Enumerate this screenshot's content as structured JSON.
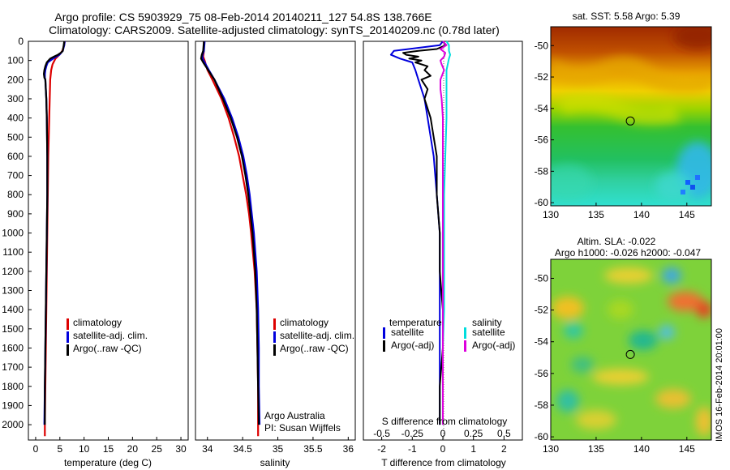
{
  "title": {
    "line1": "Argo profile: CS 5903929_75 08-Feb-2014 20140211_127 54.8S 138.766E",
    "line2": "Climatology: CARS2009. Satellite-adjusted climatology: synTS_20140209.nc (0.78d later)"
  },
  "depth_ticks": [
    "0",
    "100",
    "200",
    "300",
    "400",
    "500",
    "600",
    "700",
    "800",
    "900",
    "1000",
    "1100",
    "1200",
    "1300",
    "1400",
    "1500",
    "1600",
    "1700",
    "1800",
    "1900",
    "2000"
  ],
  "colors": {
    "climatology": "#dd0000",
    "satellite": "#0000dd",
    "argo": "#000000",
    "salinity_sat": "#00dddd",
    "salinity_argo": "#dd00dd"
  },
  "chart_data": [
    {
      "type": "line",
      "name": "temperature-profile",
      "xlabel": "temperature (deg C)",
      "x_ticks": [
        "0",
        "5",
        "10",
        "15",
        "20",
        "25",
        "30"
      ],
      "xlim": [
        -1.5,
        31.5
      ],
      "ylim": [
        2080,
        0
      ],
      "legend": [
        "climatology",
        "satellite-adj. clim.",
        "Argo(..raw -QC)"
      ],
      "series": [
        {
          "name": "climatology",
          "color_key": "climatology",
          "depth": [
            0,
            20,
            50,
            70,
            90,
            120,
            150,
            200,
            300,
            400,
            600,
            800,
            1000,
            1200,
            1400,
            1600,
            1800,
            2000,
            2060
          ],
          "values": [
            6.0,
            5.9,
            5.5,
            4.9,
            4.1,
            3.5,
            3.2,
            3.0,
            2.9,
            2.8,
            2.6,
            2.5,
            2.4,
            2.3,
            2.2,
            2.1,
            2.0,
            1.9,
            1.9
          ]
        },
        {
          "name": "satellite-adj. clim.",
          "color_key": "satellite",
          "depth": [
            0,
            20,
            50,
            70,
            90,
            110,
            130,
            150,
            170,
            190,
            200,
            300,
            400,
            600,
            800,
            1000,
            1200,
            1400,
            1600,
            1800,
            2000
          ],
          "values": [
            6.0,
            5.9,
            5.6,
            4.9,
            3.6,
            2.5,
            2.2,
            2.0,
            1.9,
            1.9,
            2.0,
            2.2,
            2.3,
            2.4,
            2.4,
            2.3,
            2.2,
            2.1,
            2.0,
            1.9,
            1.8
          ]
        },
        {
          "name": "Argo(..raw -QC)",
          "color_key": "argo",
          "depth": [
            0,
            20,
            50,
            60,
            70,
            80,
            90,
            110,
            130,
            150,
            170,
            190,
            200,
            300,
            400,
            600,
            800,
            1000,
            1200,
            1400,
            1600,
            1800,
            2000
          ],
          "values": [
            5.9,
            5.8,
            5.6,
            5.2,
            4.6,
            3.8,
            3.0,
            2.3,
            2.0,
            1.8,
            1.7,
            1.8,
            2.0,
            2.2,
            2.3,
            2.4,
            2.4,
            2.3,
            2.2,
            2.1,
            2.0,
            1.9,
            1.9
          ]
        }
      ]
    },
    {
      "type": "line",
      "name": "salinity-profile",
      "xlabel": "salinity",
      "x_ticks": [
        "34",
        "34.5",
        "35",
        "35.5",
        "36"
      ],
      "xlim": [
        33.83,
        36.1
      ],
      "ylim": [
        2080,
        0
      ],
      "legend": [
        "climatology",
        "satellite-adj. clim.",
        "Argo(..raw -QC)"
      ],
      "annotation": [
        "Argo Australia",
        "PI: Susan Wijffels"
      ],
      "series": [
        {
          "name": "climatology",
          "color_key": "climatology",
          "depth": [
            0,
            50,
            80,
            100,
            150,
            200,
            300,
            400,
            500,
            600,
            700,
            800,
            900,
            1000,
            1200,
            1400,
            1600,
            1800,
            2000,
            2060
          ],
          "values": [
            33.95,
            33.95,
            33.94,
            33.96,
            34.0,
            34.07,
            34.2,
            34.3,
            34.38,
            34.45,
            34.5,
            34.55,
            34.59,
            34.62,
            34.67,
            34.7,
            34.71,
            34.72,
            34.72,
            34.72
          ]
        },
        {
          "name": "satellite-adj. clim.",
          "color_key": "satellite",
          "depth": [
            0,
            50,
            70,
            90,
            110,
            150,
            200,
            300,
            400,
            500,
            600,
            700,
            800,
            900,
            1000,
            1200,
            1400,
            1600,
            1800,
            2000
          ],
          "values": [
            33.96,
            33.95,
            33.93,
            33.93,
            33.96,
            34.02,
            34.1,
            34.24,
            34.35,
            34.44,
            34.51,
            34.56,
            34.6,
            34.63,
            34.66,
            34.7,
            34.72,
            34.73,
            34.73,
            34.74
          ]
        },
        {
          "name": "Argo(..raw -QC)",
          "color_key": "argo",
          "depth": [
            0,
            50,
            70,
            90,
            110,
            150,
            200,
            300,
            400,
            500,
            600,
            700,
            800,
            900,
            1000,
            1200,
            1400,
            1600,
            1800,
            2000
          ],
          "values": [
            33.95,
            33.94,
            33.92,
            33.91,
            33.94,
            34.01,
            34.1,
            34.22,
            34.33,
            34.42,
            34.49,
            34.54,
            34.58,
            34.61,
            34.64,
            34.68,
            34.7,
            34.71,
            34.72,
            34.73
          ]
        }
      ]
    },
    {
      "type": "line",
      "name": "difference-profile",
      "xlabel": "T difference from climatology",
      "x_ticks": [
        "-2",
        "-1",
        "0",
        "1",
        "2"
      ],
      "xlim": [
        -2.6,
        2.6
      ],
      "s_axis_label": "S difference from climatology",
      "s_ticks": [
        "-0.5",
        "-0.25",
        "0",
        "0.25",
        "0.5"
      ],
      "ylim": [
        2080,
        0
      ],
      "legend_left_title": "temperature",
      "legend_left": [
        "satellite",
        "Argo(-adj)"
      ],
      "legend_right_title": "salinity",
      "legend_right": [
        "satellite",
        "Argo(-adj)"
      ],
      "series": [
        {
          "name": "T satellite",
          "color_key": "satellite",
          "depth": [
            0,
            20,
            50,
            70,
            90,
            110,
            150,
            200,
            300,
            400,
            600,
            800,
            1000,
            1200,
            1400,
            1600,
            1800,
            2000
          ],
          "values": [
            0,
            -0.1,
            -1.6,
            -1.7,
            -1.4,
            -1.0,
            -0.9,
            -0.8,
            -0.6,
            -0.5,
            -0.3,
            -0.2,
            -0.1,
            -0.1,
            -0.1,
            -0.1,
            -0.1,
            -0.1
          ]
        },
        {
          "name": "T Argo(-adj)",
          "color_key": "argo",
          "depth": [
            0,
            20,
            40,
            50,
            60,
            70,
            80,
            90,
            100,
            110,
            130,
            150,
            180,
            200,
            250,
            300,
            400,
            500,
            600,
            800,
            1000,
            1200,
            1400,
            1600,
            1800,
            2000
          ],
          "values": [
            0,
            0.1,
            -0.2,
            -0.8,
            -1.3,
            -1.2,
            -0.8,
            -1.1,
            -0.7,
            -0.9,
            -0.5,
            -0.6,
            -0.4,
            -0.7,
            -0.5,
            -0.6,
            -0.4,
            -0.3,
            -0.2,
            -0.2,
            -0.1,
            -0.1,
            0.0,
            0.0,
            -0.1,
            -0.1
          ]
        },
        {
          "name": "S satellite",
          "color_key": "salinity_sat",
          "depth": [
            0,
            20,
            50,
            70,
            90,
            120,
            150,
            200,
            300,
            400,
            600,
            800,
            1000,
            1200,
            1400,
            1600,
            1800,
            2000
          ],
          "values": [
            0.03,
            0.05,
            0.05,
            0.06,
            0.05,
            0.04,
            0.03,
            0.03,
            0.03,
            0.03,
            0.02,
            0.01,
            0.01,
            0.01,
            0.01,
            0.0,
            0.0,
            0.0
          ]
        },
        {
          "name": "S Argo(-adj)",
          "color_key": "salinity_argo",
          "depth": [
            0,
            20,
            40,
            60,
            80,
            100,
            120,
            150,
            200,
            250,
            300,
            400,
            600,
            800,
            1000,
            1200,
            1500,
            1800,
            2000
          ],
          "values": [
            0.0,
            0.03,
            -0.02,
            0.02,
            0.01,
            -0.02,
            -0.01,
            0.01,
            -0.02,
            -0.02,
            -0.01,
            0.0,
            0.0,
            0.0,
            0.0,
            0.0,
            0.0,
            0.0,
            0.0
          ]
        }
      ]
    },
    {
      "type": "heatmap",
      "name": "sst-map",
      "title": "sat. SST: 5.58 Argo: 5.39",
      "x_ticks": [
        "130",
        "135",
        "140",
        "145"
      ],
      "y_ticks": [
        "-50",
        "-52",
        "-54",
        "-56",
        "-58",
        "-60"
      ],
      "xlim": [
        130,
        147.7
      ],
      "ylim": [
        -60.2,
        -48.8
      ],
      "marker": {
        "lon": 138.766,
        "lat": -54.8
      }
    },
    {
      "type": "heatmap",
      "name": "sla-map",
      "title": "Altim. SLA: -0.022",
      "subtitle": "Argo h1000: -0.026 h2000: -0.047",
      "x_ticks": [
        "130",
        "135",
        "140",
        "145"
      ],
      "y_ticks": [
        "-50",
        "-52",
        "-54",
        "-56",
        "-58",
        "-60"
      ],
      "xlim": [
        130,
        147.7
      ],
      "ylim": [
        -60.2,
        -48.8
      ],
      "marker": {
        "lon": 138.766,
        "lat": -54.8
      }
    }
  ],
  "timestamp": "IMOS 16-Feb-2014 20:01:00"
}
